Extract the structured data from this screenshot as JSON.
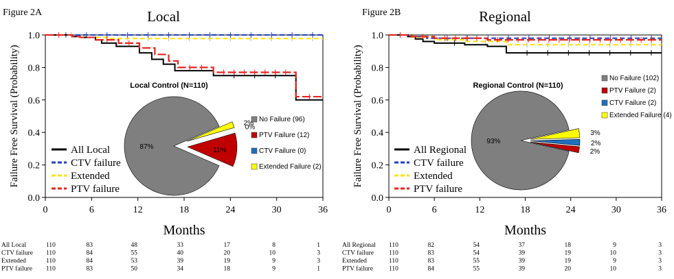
{
  "chart_data": [
    {
      "type": "line",
      "figure_label": "Figure 2A",
      "title": "Local",
      "xlabel": "Months",
      "ylabel": "Failure Free Survival (Probability)",
      "xlim": [
        0,
        36
      ],
      "ylim": [
        0,
        1
      ],
      "xticks": [
        0,
        6,
        12,
        18,
        24,
        30,
        36
      ],
      "yticks": [
        "0.0",
        "0.2",
        "0.4",
        "0.6",
        "0.8",
        "1.0"
      ],
      "colors": {
        "all": "#000000",
        "ctv": "#1f3fbf",
        "extended": "#ffe100",
        "ptv": "#e8231e"
      },
      "legend": [
        "All Local",
        "CTV failure",
        "Extended",
        "PTV failure"
      ],
      "series": [
        {
          "name": "All Local",
          "points": [
            [
              0,
              1.0
            ],
            [
              3.5,
              0.99
            ],
            [
              4.5,
              0.985
            ],
            [
              6.5,
              0.97
            ],
            [
              7.3,
              0.95
            ],
            [
              9.2,
              0.93
            ],
            [
              12.2,
              0.89
            ],
            [
              13.8,
              0.85
            ],
            [
              15.3,
              0.82
            ],
            [
              16.8,
              0.78
            ],
            [
              18.3,
              0.78
            ],
            [
              21.8,
              0.75
            ],
            [
              32.5,
              0.75
            ],
            [
              32.5,
              0.6
            ],
            [
              36,
              0.6
            ]
          ]
        },
        {
          "name": "CTV failure",
          "points": [
            [
              0,
              1.0
            ],
            [
              36,
              1.0
            ]
          ]
        },
        {
          "name": "Extended",
          "points": [
            [
              0,
              1.0
            ],
            [
              5,
              0.985
            ],
            [
              8,
              0.978
            ],
            [
              36,
              0.978
            ]
          ]
        },
        {
          "name": "PTV failure",
          "points": [
            [
              0,
              1.0
            ],
            [
              3.5,
              0.99
            ],
            [
              4.5,
              0.985
            ],
            [
              6.5,
              0.97
            ],
            [
              9.5,
              0.95
            ],
            [
              12.2,
              0.92
            ],
            [
              14.2,
              0.88
            ],
            [
              16,
              0.84
            ],
            [
              17.2,
              0.8
            ],
            [
              21.8,
              0.77
            ],
            [
              32.5,
              0.77
            ],
            [
              32.5,
              0.62
            ],
            [
              36,
              0.62
            ]
          ]
        }
      ],
      "inset_pie": {
        "title": "Local Control (N=110)",
        "slices": [
          {
            "label": "No Failure (96)",
            "pct": 87,
            "pct_label": "87%",
            "color": "#7f7f7f"
          },
          {
            "label": "PTV Failure (12)",
            "pct": 11,
            "pct_label": "11%",
            "color": "#c00000"
          },
          {
            "label": "CTV Failure (0)",
            "pct": 0,
            "pct_label": "0%",
            "color": "#1f6fbf"
          },
          {
            "label": "Extended Failure (2)",
            "pct": 2,
            "pct_label": "2%",
            "color": "#ffff00"
          }
        ]
      },
      "risk_table": {
        "rows": [
          {
            "name": "All Local",
            "values": [
              "110",
              "83",
              "48",
              "33",
              "17",
              "8",
              "1"
            ]
          },
          {
            "name": "CTV failure",
            "values": [
              "110",
              "84",
              "55",
              "40",
              "20",
              "10",
              "3"
            ]
          },
          {
            "name": "Extended",
            "values": [
              "110",
              "84",
              "53",
              "39",
              "19",
              "9",
              "3"
            ]
          },
          {
            "name": "PTV failure",
            "values": [
              "110",
              "83",
              "50",
              "34",
              "18",
              "9",
              "1"
            ]
          }
        ]
      }
    },
    {
      "type": "line",
      "figure_label": "Figure 2B",
      "title": "Regional",
      "xlabel": "Months",
      "ylabel": "Failure Free Survival (Probability)",
      "xlim": [
        0,
        36
      ],
      "ylim": [
        0,
        1
      ],
      "xticks": [
        0,
        6,
        12,
        18,
        24,
        30,
        36
      ],
      "yticks": [
        "0.0",
        "0.2",
        "0.4",
        "0.6",
        "0.8",
        "1.0"
      ],
      "colors": {
        "all": "#000000",
        "ctv": "#1f3fbf",
        "extended": "#ffe100",
        "ptv": "#e8231e"
      },
      "legend": [
        "All Regional",
        "CTV failure",
        "Extended",
        "PTV failure"
      ],
      "series": [
        {
          "name": "All Regional",
          "points": [
            [
              0,
              1.0
            ],
            [
              2.5,
              0.99
            ],
            [
              3.5,
              0.975
            ],
            [
              4.5,
              0.96
            ],
            [
              6,
              0.95
            ],
            [
              10,
              0.94
            ],
            [
              13,
              0.93
            ],
            [
              15.5,
              0.89
            ],
            [
              36,
              0.89
            ]
          ]
        },
        {
          "name": "CTV failure",
          "points": [
            [
              0,
              1.0
            ],
            [
              3,
              0.99
            ],
            [
              5,
              0.98
            ],
            [
              36,
              0.98
            ]
          ]
        },
        {
          "name": "Extended",
          "points": [
            [
              0,
              1.0
            ],
            [
              3,
              0.985
            ],
            [
              6,
              0.97
            ],
            [
              10,
              0.96
            ],
            [
              15.5,
              0.94
            ],
            [
              36,
              0.94
            ]
          ]
        },
        {
          "name": "PTV failure",
          "points": [
            [
              0,
              1.0
            ],
            [
              3,
              0.99
            ],
            [
              6,
              0.98
            ],
            [
              13,
              0.97
            ],
            [
              36,
              0.97
            ]
          ]
        }
      ],
      "inset_pie": {
        "title": "Regional Control (N=110)",
        "slices": [
          {
            "label": "No Failure (102)",
            "pct": 93,
            "pct_label": "93%",
            "color": "#7f7f7f"
          },
          {
            "label": "PTV Failure (2)",
            "pct": 2,
            "pct_label": "2%",
            "color": "#c00000"
          },
          {
            "label": "CTV Failure (2)",
            "pct": 2,
            "pct_label": "2%",
            "color": "#1f6fbf"
          },
          {
            "label": "Extended Failure (4)",
            "pct": 3,
            "pct_label": "3%",
            "color": "#ffff00"
          }
        ]
      },
      "risk_table": {
        "rows": [
          {
            "name": "All Regional",
            "values": [
              "110",
              "82",
              "54",
              "37",
              "18",
              "9",
              "3"
            ]
          },
          {
            "name": "CTV failure",
            "values": [
              "110",
              "83",
              "54",
              "39",
              "19",
              "10",
              "3"
            ]
          },
          {
            "name": "Extended",
            "values": [
              "110",
              "83",
              "55",
              "39",
              "19",
              "9",
              "3"
            ]
          },
          {
            "name": "PTV failure",
            "values": [
              "110",
              "84",
              "55",
              "39",
              "20",
              "10",
              "3"
            ]
          }
        ]
      }
    }
  ]
}
